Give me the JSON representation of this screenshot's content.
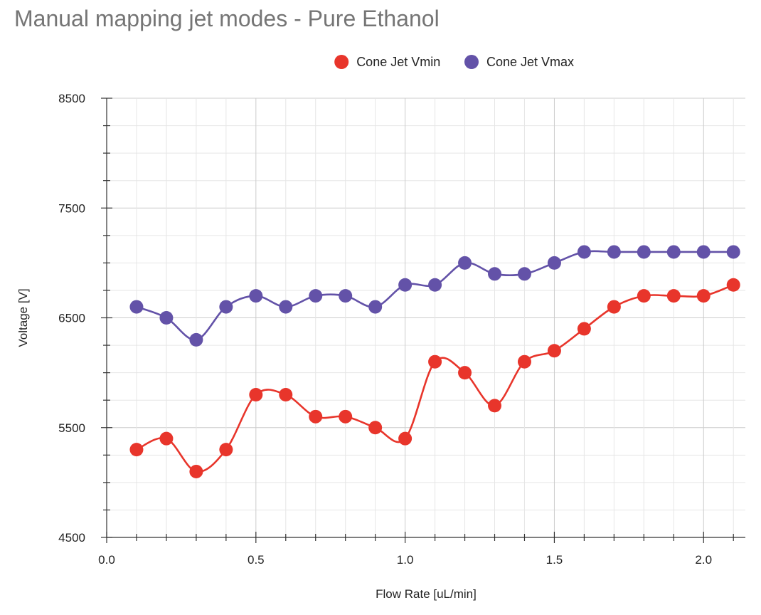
{
  "chart_data": {
    "type": "line",
    "title": "Manual mapping jet modes - Pure Ethanol",
    "xlabel": "Flow Rate [uL/min]",
    "ylabel": "Voltage [V]",
    "xlim": [
      0,
      2.14
    ],
    "ylim": [
      4500,
      8500
    ],
    "x_ticks": [
      "0.0",
      "0.5",
      "1.0",
      "1.5",
      "2.0"
    ],
    "y_ticks": [
      "4500",
      "5500",
      "6500",
      "7500",
      "8500"
    ],
    "grid": true,
    "legend_position": "top-center",
    "x": [
      0.1,
      0.2,
      0.3,
      0.4,
      0.5,
      0.6,
      0.7,
      0.8,
      0.9,
      1.0,
      1.1,
      1.2,
      1.3,
      1.4,
      1.5,
      1.6,
      1.7,
      1.8,
      1.9,
      2.0,
      2.1
    ],
    "series": [
      {
        "name": "Cone Jet Vmin",
        "color": "#e8352b",
        "values": [
          5300,
          5400,
          5100,
          5300,
          5800,
          5800,
          5600,
          5600,
          5500,
          5400,
          6100,
          6000,
          5700,
          6100,
          6200,
          6400,
          6600,
          6700,
          6700,
          6700,
          6800
        ]
      },
      {
        "name": "Cone Jet Vmax",
        "color": "#6352a8",
        "values": [
          6600,
          6500,
          6300,
          6600,
          6700,
          6600,
          6700,
          6700,
          6600,
          6800,
          6800,
          7000,
          6900,
          6900,
          7000,
          7100,
          7100,
          7100,
          7100,
          7100,
          7100
        ]
      }
    ]
  }
}
